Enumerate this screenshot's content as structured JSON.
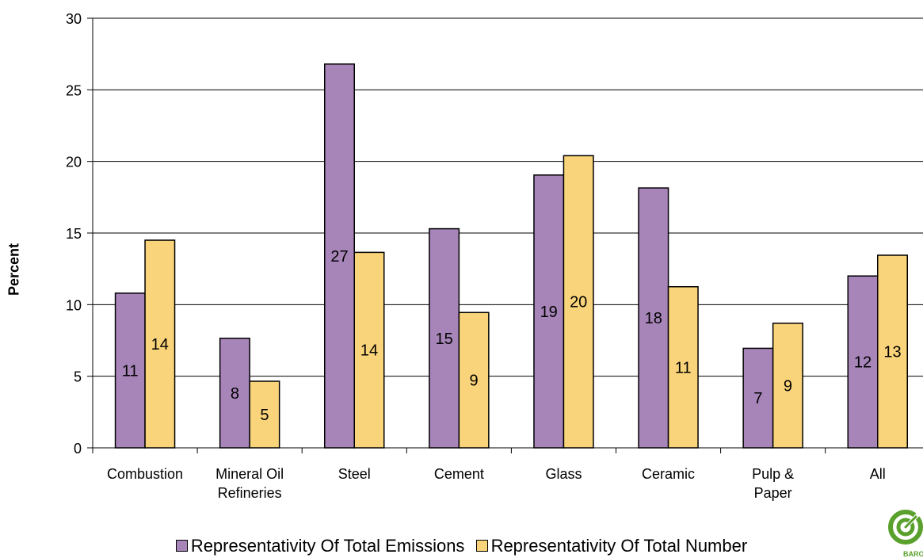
{
  "chart_data": {
    "type": "bar",
    "categories": [
      "Combustion",
      "Mineral Oil Refineries",
      "Steel",
      "Cement",
      "Glass",
      "Ceramic",
      "Pulp & Paper",
      "All"
    ],
    "category_lines": [
      [
        "Combustion"
      ],
      [
        "Mineral Oil",
        "Refineries"
      ],
      [
        "Steel"
      ],
      [
        "Cement"
      ],
      [
        "Glass"
      ],
      [
        "Ceramic"
      ],
      [
        "Pulp &",
        "Paper"
      ],
      [
        "All"
      ]
    ],
    "series": [
      {
        "name": "Representativity Of Total Emissions",
        "color": "#a785b9",
        "values": [
          10.8,
          7.65,
          26.8,
          15.3,
          19.05,
          18.15,
          6.95,
          12.0
        ],
        "labels": [
          "11",
          "8",
          "27",
          "15",
          "19",
          "18",
          "7",
          "12"
        ]
      },
      {
        "name": "Representativity Of Total Number",
        "color": "#fad47a",
        "values": [
          14.5,
          4.65,
          13.65,
          9.45,
          20.4,
          11.25,
          8.7,
          13.45
        ],
        "labels": [
          "14",
          "5",
          "14",
          "9",
          "20",
          "11",
          "9",
          "13"
        ]
      }
    ],
    "title": "",
    "xlabel": "",
    "ylabel": "Percent",
    "ylim": [
      0,
      30
    ],
    "yticks": [
      0,
      5,
      10,
      15,
      20,
      25,
      30
    ],
    "grid": true,
    "legend_position": "bottom"
  },
  "logo": {
    "name": "barometer-logo-icon",
    "text": "BAROME",
    "color": "#5aa02c"
  }
}
